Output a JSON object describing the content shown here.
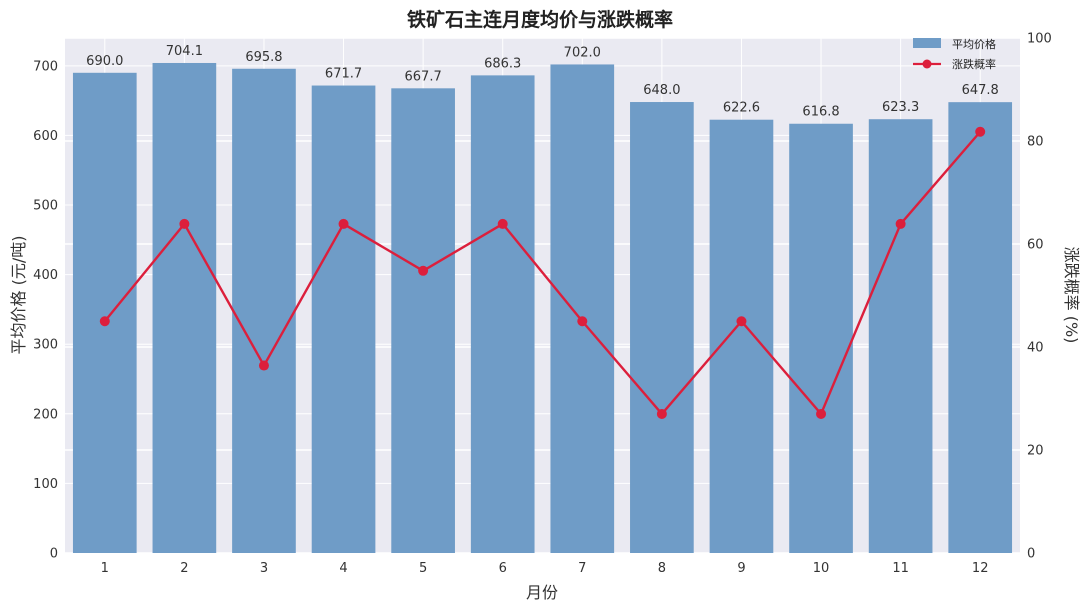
{
  "chart_data": {
    "type": "bar",
    "title": "铁矿石主连月度均价与涨跌概率",
    "xlabel": "月份",
    "ylabel": "平均价格 (元/吨)",
    "y2label": "涨跌概率 (%)",
    "categories": [
      "1",
      "2",
      "3",
      "4",
      "5",
      "6",
      "7",
      "8",
      "9",
      "10",
      "11",
      "12"
    ],
    "series": [
      {
        "name": "平均价格",
        "type": "bar",
        "axis": "left",
        "values": [
          690.0,
          704.1,
          695.8,
          671.7,
          667.7,
          686.3,
          702.0,
          648.0,
          622.6,
          616.8,
          623.3,
          647.8
        ],
        "labels": [
          "690.0",
          "704.1",
          "695.8",
          "671.7",
          "667.7",
          "686.3",
          "702.0",
          "648.0",
          "622.6",
          "616.8",
          "623.3",
          "647.8"
        ]
      },
      {
        "name": "涨跌概率",
        "type": "line",
        "axis": "right",
        "values": [
          45.0,
          63.9,
          36.4,
          63.9,
          54.8,
          63.9,
          45.0,
          27.0,
          45.0,
          27.0,
          63.9,
          81.8
        ]
      }
    ],
    "ylim": [
      0,
      740
    ],
    "y2lim": [
      0,
      100
    ],
    "yticks": [
      "0",
      "100",
      "200",
      "300",
      "400",
      "500",
      "600",
      "700"
    ],
    "y2ticks": [
      "0",
      "20",
      "40",
      "60",
      "80",
      "100"
    ],
    "grid": true,
    "legend": "top-right",
    "colors": {
      "bar": "#6f9cc7",
      "line": "#dc1f3c",
      "plot_bg": "#eaeaf2",
      "grid": "#ffffff"
    }
  }
}
